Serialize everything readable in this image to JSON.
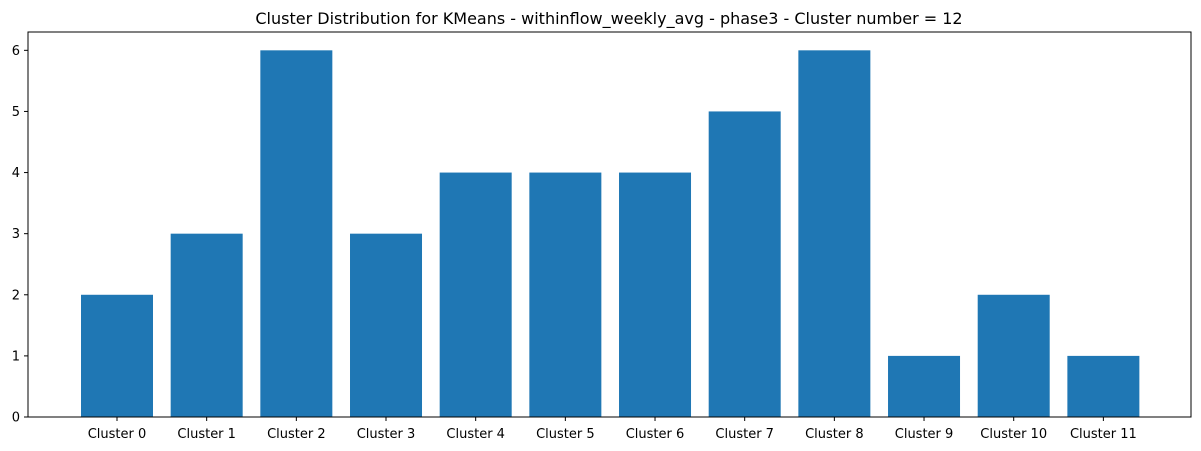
{
  "chart_data": {
    "type": "bar",
    "title": "Cluster Distribution for KMeans - withinflow_weekly_avg - phase3 - Cluster number = 12",
    "categories": [
      "Cluster 0",
      "Cluster 1",
      "Cluster 2",
      "Cluster 3",
      "Cluster 4",
      "Cluster 5",
      "Cluster 6",
      "Cluster 7",
      "Cluster 8",
      "Cluster 9",
      "Cluster 10",
      "Cluster 11"
    ],
    "values": [
      2,
      3,
      6,
      3,
      4,
      4,
      4,
      5,
      6,
      1,
      2,
      1
    ],
    "yticks": [
      "0",
      "1",
      "2",
      "3",
      "4",
      "5",
      "6"
    ],
    "ylim": [
      0,
      6.3
    ],
    "xlabel": "",
    "ylabel": "",
    "bar_color": "#1f77b4",
    "grid": false,
    "legend": "none"
  }
}
